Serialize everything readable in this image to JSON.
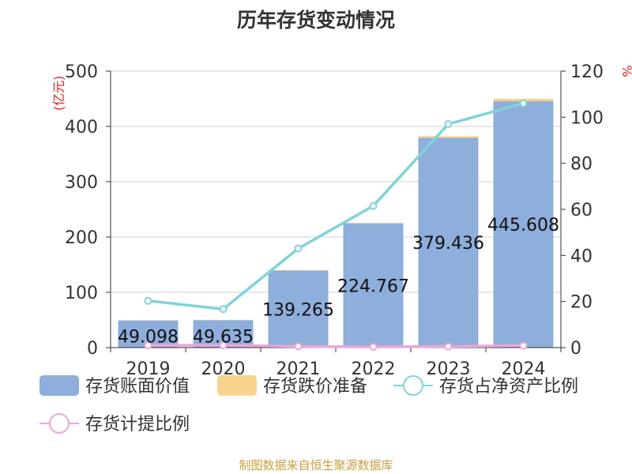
{
  "chart_data": {
    "type": "bar",
    "title": "历年存货变动情况",
    "categories": [
      "2019",
      "2020",
      "2021",
      "2022",
      "2023",
      "2024"
    ],
    "y_left": {
      "unit": "(亿元)",
      "ylim": [
        0,
        500
      ],
      "ticks": [
        0,
        100,
        200,
        300,
        400,
        500
      ]
    },
    "y_right": {
      "unit": "%",
      "ylim": [
        0,
        120
      ],
      "ticks": [
        0,
        20,
        40,
        60,
        80,
        100,
        120
      ]
    },
    "grid": true,
    "legend_position": "bottom",
    "series": [
      {
        "name": "存货账面价值",
        "type": "bar",
        "axis": "left",
        "color": "#8eaedb",
        "values": [
          49.098,
          49.635,
          139.265,
          224.767,
          379.436,
          445.608
        ],
        "labels": [
          "49.098",
          "49.635",
          "139.265",
          "224.767",
          "379.436",
          "445.608"
        ]
      },
      {
        "name": "存货跌价准备",
        "type": "bar",
        "axis": "left",
        "stacked": true,
        "color": "#f9d38e",
        "values": [
          0.4,
          0.6,
          0.8,
          0.9,
          3.0,
          4.4
        ]
      },
      {
        "name": "存货占净资产比例",
        "type": "line",
        "axis": "right",
        "color": "#80d3d8",
        "values": [
          20.3,
          16.7,
          43.0,
          61.5,
          97.0,
          106.0
        ]
      },
      {
        "name": "存货计提比例",
        "type": "line",
        "axis": "right",
        "color": "#e8a8d8",
        "values": [
          1.0,
          1.0,
          0.5,
          0.3,
          0.5,
          0.8
        ]
      }
    ]
  },
  "source": "制图数据来自恒生聚源数据库"
}
